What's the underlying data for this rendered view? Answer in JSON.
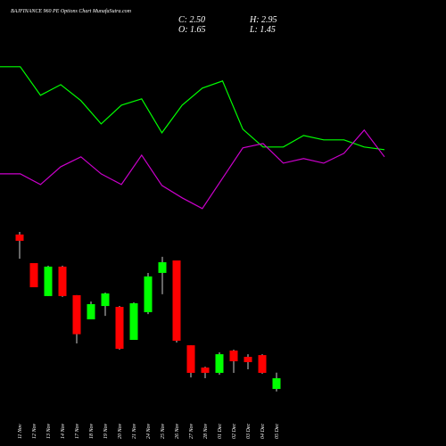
{
  "header": {
    "title": "BAJFINANCE 960 PE Options Chart MunafaSutra.com",
    "close": "C: 2.50",
    "open": "O: 1.65",
    "high": "H: 2.95",
    "low": "L: 1.45"
  },
  "chart_data": [
    {
      "type": "line",
      "ylim": [
        1.37,
        28.3
      ],
      "series": [
        {
          "color": "#00ff00",
          "values": [
            27.25,
            27.25,
            24.98,
            25.83,
            24.56,
            22.71,
            24.2,
            24.7,
            22.0,
            24.2,
            25.55,
            26.12,
            22.29,
            20.87,
            20.87,
            21.79,
            21.44,
            21.44,
            20.87,
            20.66
          ]
        },
        {
          "color": "#cc00cc",
          "values": [
            18.74,
            18.74,
            17.89,
            19.31,
            20.09,
            18.74,
            17.89,
            20.23,
            17.82,
            16.83,
            15.98,
            18.39,
            20.8,
            21.15,
            19.59,
            19.95,
            19.59,
            20.37,
            22.22,
            20.09
          ]
        }
      ]
    },
    {
      "type": "candlestick",
      "ylim": [
        1.37,
        28.3
      ],
      "up_color": "#00ff00",
      "down_color": "#ff0000",
      "categories": [
        "11 Nov",
        "12 Nov",
        "13 Nov",
        "14 Nov",
        "17 Nov",
        "18 Nov",
        "19 Nov",
        "20 Nov",
        "21 Nov",
        "24 Nov",
        "25 Nov",
        "26 Nov",
        "27 Nov",
        "28 Nov",
        "01 Dec",
        "02 Dec",
        "03 Dec",
        "04 Dec",
        "05 Dec"
      ],
      "open": [
        13.92,
        11.65,
        9.03,
        11.37,
        9.1,
        7.18,
        8.24,
        8.17,
        5.55,
        7.75,
        10.87,
        11.86,
        5.12,
        3.35,
        2.93,
        4.7,
        4.2,
        4.34,
        1.65
      ],
      "high": [
        14.13,
        11.65,
        11.44,
        11.44,
        9.1,
        8.6,
        9.31,
        8.24,
        8.53,
        10.87,
        12.15,
        11.86,
        5.12,
        3.42,
        4.56,
        4.77,
        4.41,
        4.41,
        2.95
      ],
      "low": [
        12.0,
        9.73,
        9.03,
        8.96,
        5.27,
        7.18,
        7.46,
        4.77,
        5.55,
        7.6,
        9.17,
        5.34,
        2.57,
        2.5,
        2.78,
        2.93,
        3.21,
        2.86,
        1.45
      ],
      "close": [
        13.42,
        9.73,
        11.37,
        9.03,
        6.0,
        8.39,
        9.24,
        4.84,
        8.46,
        10.59,
        11.72,
        5.48,
        2.93,
        2.93,
        4.41,
        3.85,
        3.78,
        2.93,
        2.5
      ]
    }
  ]
}
